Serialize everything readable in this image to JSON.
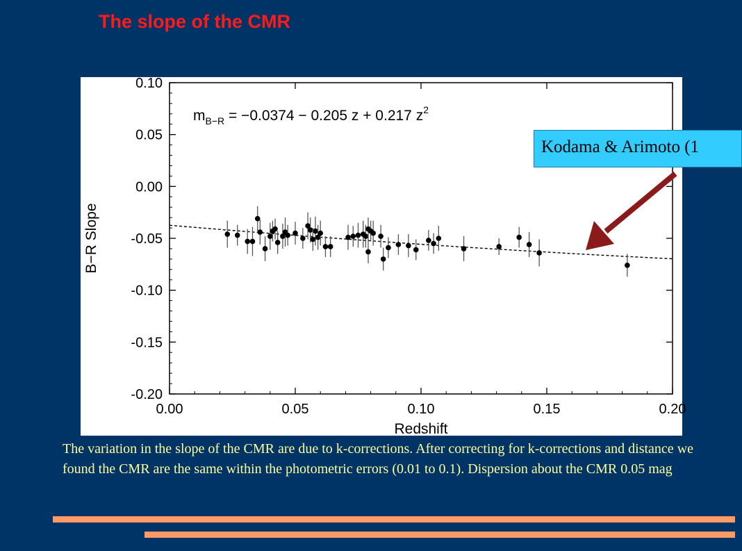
{
  "slide": {
    "title": "The slope of the CMR",
    "callout_text": "Kodama & Arimoto (1",
    "caption": "The variation in the slope of the CMR are due to k-corrections. After correcting for k-corrections and distance we found the CMR are the same within the photometric errors (0.01 to 0.1).  Dispersion about the CMR 0.05 mag"
  },
  "colors": {
    "background": "#003366",
    "title": "#ff1a1a",
    "caption": "#ffff99",
    "callout_fill": "#33ccff",
    "arrow": "#8b1a1a",
    "rule": "#ff9966"
  },
  "chart_data": {
    "type": "scatter",
    "xlabel": "Redshift",
    "ylabel": "B−R Slope",
    "xlim": [
      0.0,
      0.2
    ],
    "ylim": [
      -0.2,
      0.1
    ],
    "xticks": [
      "0.00",
      "0.05",
      "0.10",
      "0.15",
      "0.20"
    ],
    "yticks": [
      "0.10",
      "0.05",
      "0.00",
      "-0.05",
      "-0.10",
      "-0.15",
      "-0.20"
    ],
    "equation": {
      "lhs_base": "m",
      "lhs_sub": "B−R",
      "rhs_text": " = −0.0374 − 0.205 z + 0.217 z",
      "rhs_sup": "2"
    },
    "fit": {
      "c0": -0.0374,
      "c1": -0.205,
      "c2": 0.217,
      "style": "dashed"
    },
    "points": [
      {
        "x": 0.023,
        "y": -0.046,
        "err": 0.013
      },
      {
        "x": 0.027,
        "y": -0.047,
        "err": 0.01
      },
      {
        "x": 0.031,
        "y": -0.053,
        "err": 0.012
      },
      {
        "x": 0.033,
        "y": -0.053,
        "err": 0.014
      },
      {
        "x": 0.035,
        "y": -0.031,
        "err": 0.012
      },
      {
        "x": 0.036,
        "y": -0.044,
        "err": 0.012
      },
      {
        "x": 0.038,
        "y": -0.06,
        "err": 0.012
      },
      {
        "x": 0.04,
        "y": -0.048,
        "err": 0.013
      },
      {
        "x": 0.041,
        "y": -0.043,
        "err": 0.01
      },
      {
        "x": 0.042,
        "y": -0.041,
        "err": 0.01
      },
      {
        "x": 0.043,
        "y": -0.054,
        "err": 0.011
      },
      {
        "x": 0.045,
        "y": -0.048,
        "err": 0.012
      },
      {
        "x": 0.046,
        "y": -0.044,
        "err": 0.014
      },
      {
        "x": 0.047,
        "y": -0.047,
        "err": 0.01
      },
      {
        "x": 0.05,
        "y": -0.045,
        "err": 0.011
      },
      {
        "x": 0.053,
        "y": -0.05,
        "err": 0.01
      },
      {
        "x": 0.055,
        "y": -0.038,
        "err": 0.013
      },
      {
        "x": 0.056,
        "y": -0.042,
        "err": 0.012
      },
      {
        "x": 0.058,
        "y": -0.043,
        "err": 0.014
      },
      {
        "x": 0.057,
        "y": -0.051,
        "err": 0.011
      },
      {
        "x": 0.059,
        "y": -0.049,
        "err": 0.012
      },
      {
        "x": 0.06,
        "y": -0.045,
        "err": 0.012
      },
      {
        "x": 0.062,
        "y": -0.058,
        "err": 0.01
      },
      {
        "x": 0.064,
        "y": -0.058,
        "err": 0.01
      },
      {
        "x": 0.071,
        "y": -0.049,
        "err": 0.012
      },
      {
        "x": 0.073,
        "y": -0.048,
        "err": 0.01
      },
      {
        "x": 0.075,
        "y": -0.047,
        "err": 0.012
      },
      {
        "x": 0.077,
        "y": -0.046,
        "err": 0.013
      },
      {
        "x": 0.078,
        "y": -0.048,
        "err": 0.011
      },
      {
        "x": 0.079,
        "y": -0.041,
        "err": 0.011
      },
      {
        "x": 0.08,
        "y": -0.043,
        "err": 0.01
      },
      {
        "x": 0.079,
        "y": -0.063,
        "err": 0.011
      },
      {
        "x": 0.081,
        "y": -0.045,
        "err": 0.012
      },
      {
        "x": 0.084,
        "y": -0.048,
        "err": 0.011
      },
      {
        "x": 0.085,
        "y": -0.07,
        "err": 0.011
      },
      {
        "x": 0.087,
        "y": -0.059,
        "err": 0.01
      },
      {
        "x": 0.091,
        "y": -0.056,
        "err": 0.01
      },
      {
        "x": 0.095,
        "y": -0.057,
        "err": 0.011
      },
      {
        "x": 0.098,
        "y": -0.061,
        "err": 0.01
      },
      {
        "x": 0.103,
        "y": -0.052,
        "err": 0.01
      },
      {
        "x": 0.105,
        "y": -0.055,
        "err": 0.01
      },
      {
        "x": 0.107,
        "y": -0.05,
        "err": 0.012
      },
      {
        "x": 0.117,
        "y": -0.06,
        "err": 0.012
      },
      {
        "x": 0.131,
        "y": -0.058,
        "err": 0.008
      },
      {
        "x": 0.139,
        "y": -0.049,
        "err": 0.01
      },
      {
        "x": 0.143,
        "y": -0.056,
        "err": 0.012
      },
      {
        "x": 0.147,
        "y": -0.064,
        "err": 0.013
      },
      {
        "x": 0.182,
        "y": -0.076,
        "err": 0.011
      }
    ],
    "grid": false,
    "legend": "none"
  }
}
